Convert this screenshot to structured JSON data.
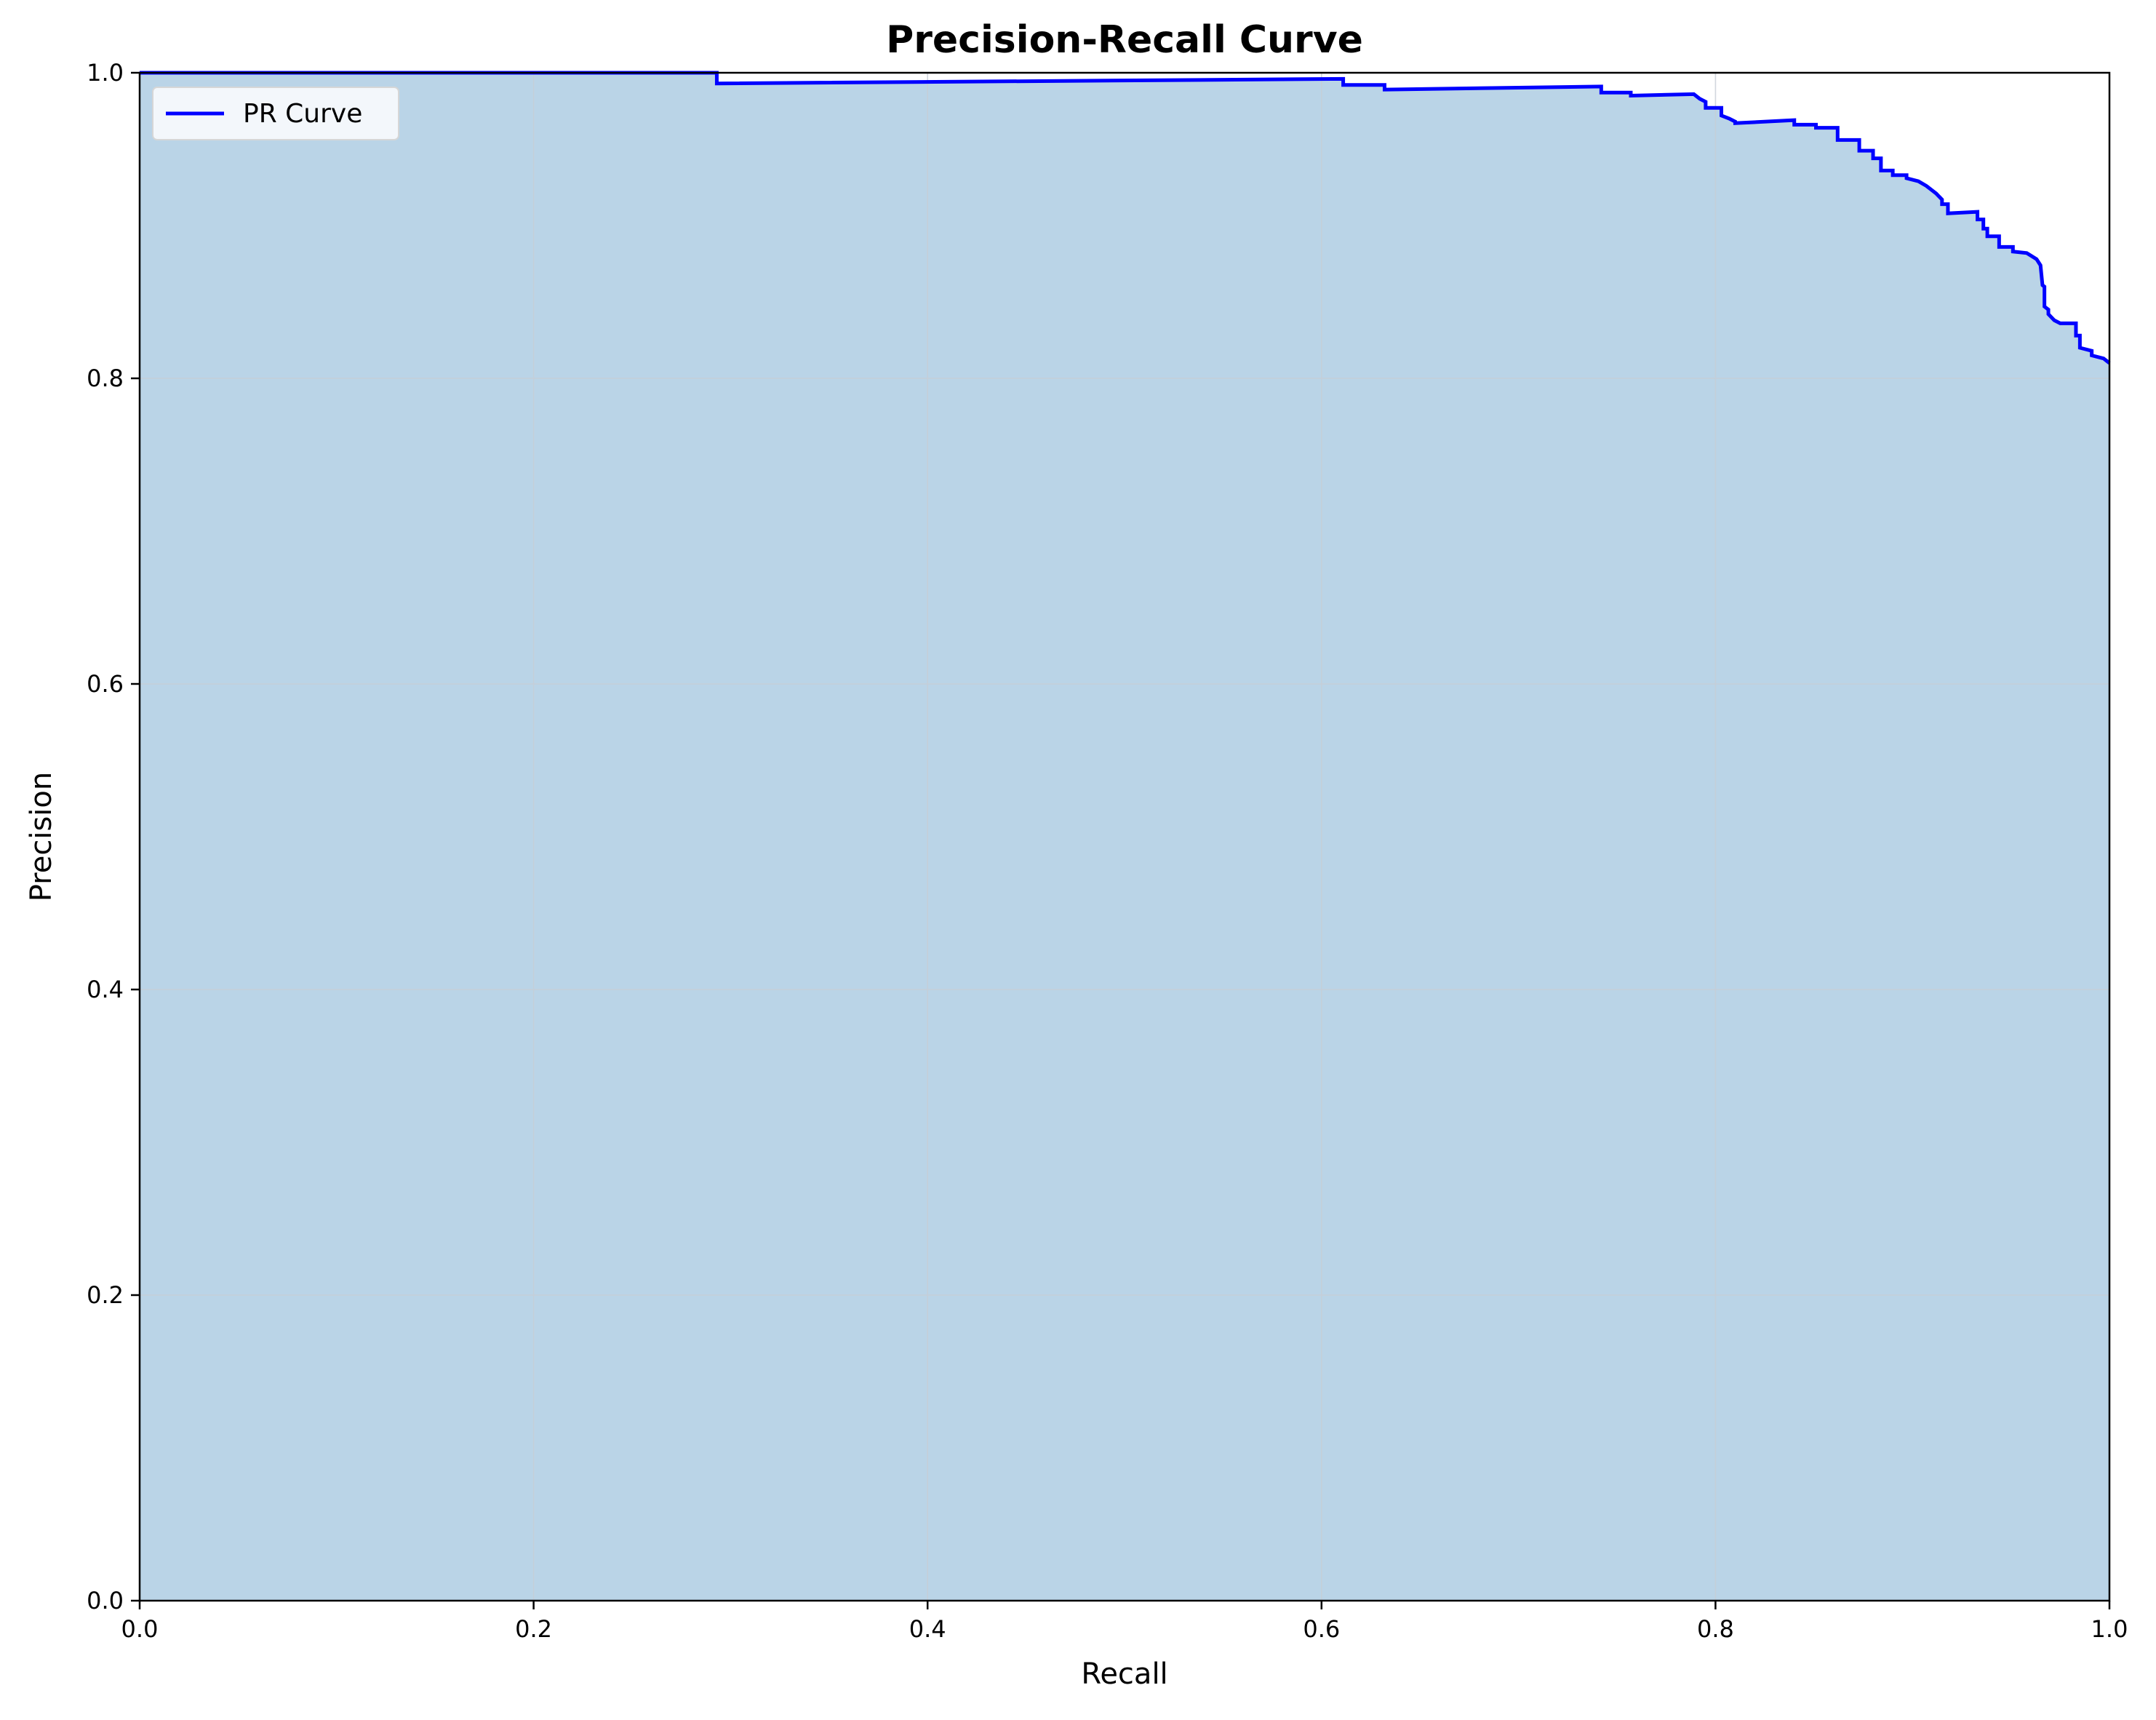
{
  "chart_data": {
    "type": "area",
    "title": "Precision-Recall Curve",
    "xlabel": "Recall",
    "ylabel": "Precision",
    "xlim": [
      0.0,
      1.0
    ],
    "ylim": [
      0.0,
      1.0
    ],
    "xticks": [
      {
        "value": 0.0,
        "label": "0.0"
      },
      {
        "value": 0.2,
        "label": "0.2"
      },
      {
        "value": 0.4,
        "label": "0.4"
      },
      {
        "value": 0.6,
        "label": "0.6"
      },
      {
        "value": 0.8,
        "label": "0.8"
      },
      {
        "value": 1.0,
        "label": "1.0"
      }
    ],
    "yticks": [
      {
        "value": 0.0,
        "label": "0.0"
      },
      {
        "value": 0.2,
        "label": "0.2"
      },
      {
        "value": 0.4,
        "label": "0.4"
      },
      {
        "value": 0.6,
        "label": "0.6"
      },
      {
        "value": 0.8,
        "label": "0.8"
      },
      {
        "value": 1.0,
        "label": "1.0"
      }
    ],
    "grid": true,
    "legend": {
      "position": "top-left",
      "entries": [
        "PR Curve"
      ]
    },
    "colors": {
      "line": "#0000ff",
      "fill": "#bad4e7",
      "grid": "#c7cdd6"
    },
    "series": [
      {
        "name": "PR Curve",
        "filled": true,
        "x": [
          0.0,
          0.293,
          0.293,
          0.611,
          0.611,
          0.632,
          0.632,
          0.742,
          0.742,
          0.757,
          0.757,
          0.789,
          0.792,
          0.795,
          0.795,
          0.803,
          0.803,
          0.807,
          0.81,
          0.81,
          0.84,
          0.84,
          0.851,
          0.851,
          0.862,
          0.862,
          0.873,
          0.873,
          0.88,
          0.88,
          0.884,
          0.884,
          0.89,
          0.89,
          0.897,
          0.897,
          0.903,
          0.907,
          0.91,
          0.912,
          0.915,
          0.915,
          0.918,
          0.918,
          0.933,
          0.933,
          0.936,
          0.936,
          0.938,
          0.938,
          0.944,
          0.944,
          0.951,
          0.951,
          0.958,
          0.963,
          0.965,
          0.966,
          0.967,
          0.967,
          0.969,
          0.969,
          0.972,
          0.975,
          0.983,
          0.983,
          0.985,
          0.985,
          0.991,
          0.991,
          0.997,
          1.0
        ],
        "y": [
          1.0,
          1.0,
          0.993,
          0.996,
          0.992,
          0.992,
          0.989,
          0.991,
          0.987,
          0.987,
          0.985,
          0.986,
          0.983,
          0.981,
          0.977,
          0.977,
          0.972,
          0.97,
          0.968,
          0.967,
          0.969,
          0.966,
          0.966,
          0.964,
          0.964,
          0.956,
          0.956,
          0.949,
          0.949,
          0.944,
          0.944,
          0.936,
          0.936,
          0.933,
          0.933,
          0.931,
          0.929,
          0.926,
          0.923,
          0.921,
          0.917,
          0.914,
          0.914,
          0.908,
          0.909,
          0.904,
          0.904,
          0.898,
          0.898,
          0.893,
          0.893,
          0.886,
          0.886,
          0.883,
          0.882,
          0.878,
          0.874,
          0.861,
          0.86,
          0.847,
          0.845,
          0.842,
          0.838,
          0.836,
          0.836,
          0.828,
          0.828,
          0.82,
          0.818,
          0.815,
          0.813,
          0.81
        ]
      }
    ]
  }
}
